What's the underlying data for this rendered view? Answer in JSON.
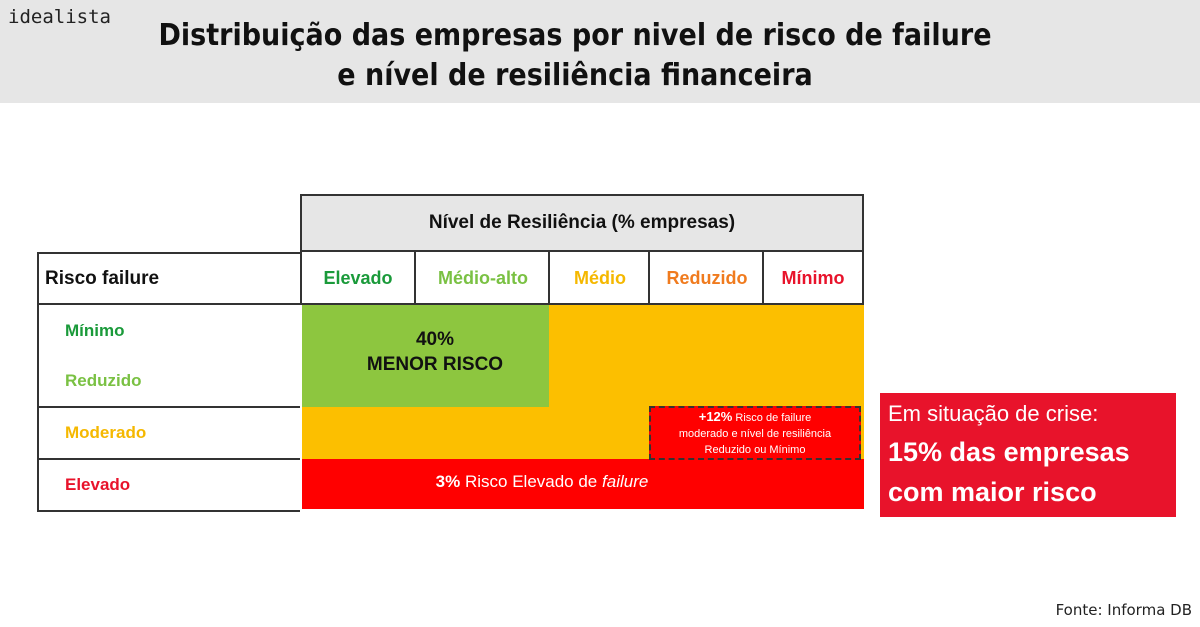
{
  "brand": "idealista",
  "title": {
    "line1": "Distribuição das empresas por nivel de risco de failure",
    "line2": "e nível de resiliência financeira"
  },
  "table": {
    "resilience_header": "Nível de Resiliência (% empresas)",
    "row_header": "Risco failure",
    "columns": [
      {
        "label": "Elevado",
        "color": "#1a9a3a"
      },
      {
        "label": "Médio-alto",
        "color": "#7ac143"
      },
      {
        "label": "Médio",
        "color": "#f5b800"
      },
      {
        "label": "Reduzido",
        "color": "#f07b1e"
      },
      {
        "label": "Mínimo",
        "color": "#e8132b"
      }
    ],
    "rows": [
      {
        "label": "Mínimo",
        "color": "#1a9a3a"
      },
      {
        "label": "Reduzido",
        "color": "#7ac143"
      },
      {
        "label": "Moderado",
        "color": "#f5b800"
      },
      {
        "label": "Elevado",
        "color": "#e8132b"
      }
    ]
  },
  "blocks": {
    "low_risk_pct": "40%",
    "low_risk_label": "MENOR RISCO",
    "moderate_pct": "+12%",
    "moderate_text1": "Risco de failure",
    "moderate_text2": "moderado e nível de resiliência",
    "moderate_text3": "Reduzido ou Mínimo",
    "high_pct": "3%",
    "high_text": "Risco Elevado de",
    "high_italic": "failure"
  },
  "callout": {
    "line1": "Em situação de crise:",
    "line2": "15% das empresas",
    "line3": "com maior risco"
  },
  "colors": {
    "green_block": "#8dc63f",
    "yellow_block": "#fcbf00",
    "red_block": "#ff0000",
    "callout_bg": "#e8132b"
  },
  "source": "Fonte: Informa DB"
}
